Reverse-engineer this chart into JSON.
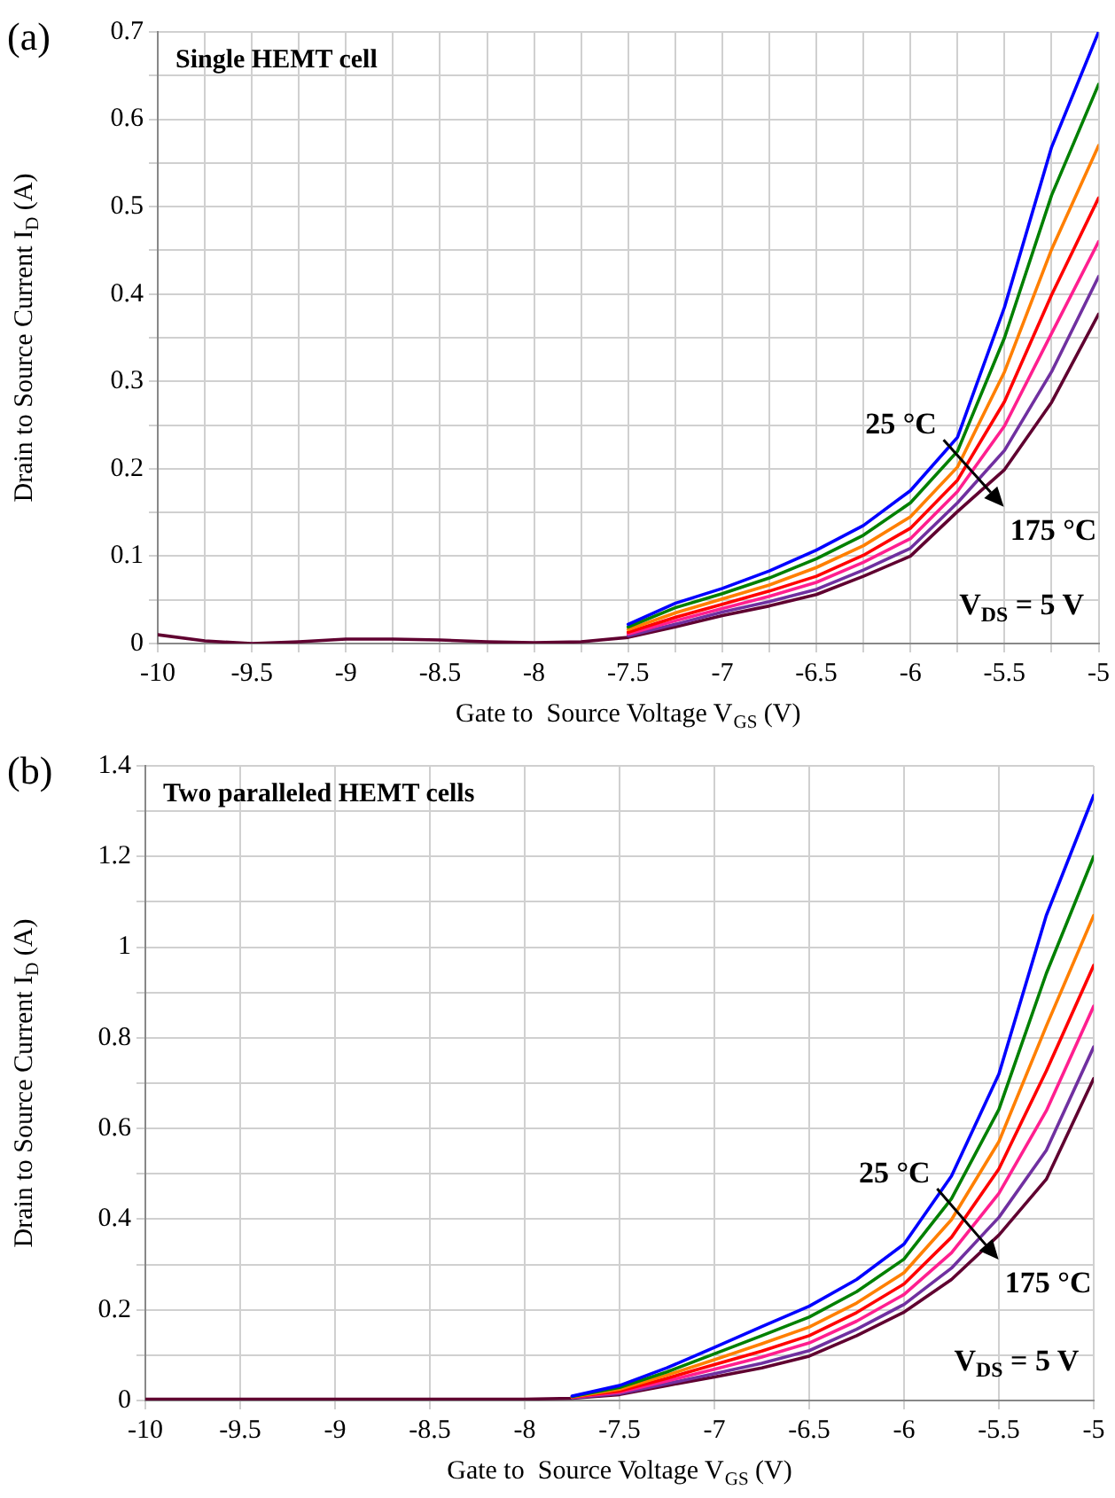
{
  "chart_data": [
    {
      "type": "line",
      "title": "(a)",
      "subtitle": "Single HEMT cell",
      "xlabel": "Gate to  Source Voltage V$_{GS}$ (V)",
      "ylabel": "Drain to Source Current I$_{D}$ (A)",
      "annotations": [
        "25 °C",
        "175 °C",
        "V$_{DS}$ = 5 V"
      ],
      "x": [
        -10,
        -9.75,
        -9.5,
        -9.25,
        -9,
        -8.75,
        -8.5,
        -8.25,
        -8,
        -7.75,
        -7.5,
        -7.25,
        -7,
        -6.75,
        -6.5,
        -6.25,
        -6,
        -5.75,
        -5.5,
        -5.25,
        -5
      ],
      "series": [
        {
          "color": "#0000ff",
          "values": [
            null,
            null,
            null,
            null,
            null,
            null,
            null,
            null,
            null,
            null,
            0.022,
            0.046,
            0.063,
            0.083,
            0.107,
            0.135,
            0.175,
            0.236,
            0.385,
            0.568,
            0.7
          ]
        },
        {
          "color": "#008000",
          "values": [
            null,
            null,
            null,
            null,
            null,
            null,
            null,
            null,
            null,
            null,
            0.019,
            0.041,
            0.057,
            0.075,
            0.097,
            0.124,
            0.161,
            0.22,
            0.35,
            0.513,
            0.64
          ]
        },
        {
          "color": "#ff7f00",
          "values": [
            null,
            null,
            null,
            null,
            null,
            null,
            null,
            null,
            null,
            null,
            0.016,
            0.035,
            0.051,
            0.067,
            0.087,
            0.112,
            0.145,
            0.202,
            0.311,
            0.451,
            0.57
          ]
        },
        {
          "color": "#ff0000",
          "values": [
            null,
            null,
            null,
            null,
            null,
            null,
            null,
            null,
            null,
            null,
            0.013,
            0.03,
            0.045,
            0.06,
            0.077,
            0.101,
            0.132,
            0.187,
            0.277,
            0.399,
            0.51
          ]
        },
        {
          "color": "#ff1f8f",
          "values": [
            null,
            null,
            null,
            null,
            null,
            null,
            null,
            null,
            null,
            null,
            0.011,
            0.026,
            0.04,
            0.054,
            0.07,
            0.093,
            0.12,
            0.174,
            0.249,
            0.355,
            0.46
          ]
        },
        {
          "color": "#7030a0",
          "values": [
            null,
            null,
            null,
            null,
            null,
            null,
            null,
            null,
            null,
            null,
            0.009,
            0.022,
            0.036,
            0.048,
            0.062,
            0.084,
            0.109,
            0.161,
            0.221,
            0.311,
            0.42
          ]
        },
        {
          "color": "#600030",
          "values": [
            0.01,
            0.003,
            0,
            0.002,
            0.005,
            0.005,
            0.004,
            0.002,
            0.001,
            0.002,
            0.007,
            0.019,
            0.032,
            0.043,
            0.056,
            0.077,
            0.1,
            0.151,
            0.199,
            0.276,
            0.377
          ]
        }
      ],
      "xlim": [
        -10,
        -5
      ],
      "xticks": [
        -10,
        {
          "value": -9.75,
          "label": null
        },
        -9.5,
        {
          "value": -9.25,
          "label": null
        },
        -9,
        {
          "value": -8.75,
          "label": null
        },
        -8.5,
        {
          "value": -8.25,
          "label": null
        },
        -8,
        {
          "value": -7.75,
          "label": null
        },
        -7.5,
        {
          "value": -7.25,
          "label": null
        },
        -7,
        {
          "value": -6.75,
          "label": null
        },
        -6.5,
        {
          "value": -6.25,
          "label": null
        },
        -6,
        {
          "value": -5.75,
          "label": null
        },
        -5.5,
        {
          "value": -5.25,
          "label": null
        },
        -5
      ],
      "ylim": [
        0,
        0.7
      ],
      "yticks": [
        0,
        {
          "value": 0.05,
          "label": null
        },
        0.1,
        {
          "value": 0.15,
          "label": null
        },
        0.2,
        {
          "value": 0.25,
          "label": null
        },
        0.3,
        {
          "value": 0.35,
          "label": null
        },
        0.4,
        {
          "value": 0.45,
          "label": null
        },
        0.5,
        {
          "value": 0.55,
          "label": null
        },
        0.6,
        {
          "value": 0.65,
          "label": null
        },
        0.7
      ],
      "grid": true
    },
    {
      "type": "line",
      "title": "(b)",
      "subtitle": "Two paralleled HEMT cells",
      "xlabel": "Gate to  Source Voltage V$_{GS}$ (V)",
      "ylabel": "Drain to Source Current I$_{D}$ (A)",
      "annotations": [
        "25 °C",
        "175 °C",
        "V$_{DS}$ = 5 V"
      ],
      "x": [
        -10,
        -9.75,
        -9.5,
        -9.25,
        -9,
        -8.75,
        -8.5,
        -8.25,
        -8,
        -7.75,
        -7.5,
        -7.25,
        -7,
        -6.75,
        -6.5,
        -6.25,
        -6,
        -5.75,
        -5.5,
        -5.25,
        -5
      ],
      "series": [
        {
          "color": "#0000ff",
          "values": [
            null,
            null,
            null,
            null,
            null,
            null,
            null,
            null,
            null,
            0.01,
            0.033,
            0.072,
            0.117,
            0.163,
            0.208,
            0.267,
            0.345,
            0.495,
            0.72,
            1.07,
            1.335
          ]
        },
        {
          "color": "#008000",
          "values": [
            null,
            null,
            null,
            null,
            null,
            null,
            null,
            null,
            null,
            0.009,
            0.029,
            0.063,
            0.103,
            0.143,
            0.184,
            0.24,
            0.312,
            0.445,
            0.642,
            0.942,
            1.2
          ]
        },
        {
          "color": "#ff7f00",
          "values": [
            null,
            null,
            null,
            null,
            null,
            null,
            null,
            null,
            null,
            0.008,
            0.025,
            0.056,
            0.09,
            0.125,
            0.162,
            0.215,
            0.282,
            0.399,
            0.571,
            0.826,
            1.07
          ]
        },
        {
          "color": "#ff0000",
          "values": [
            null,
            null,
            null,
            null,
            null,
            null,
            null,
            null,
            null,
            0.008,
            0.021,
            0.049,
            0.079,
            0.109,
            0.143,
            0.194,
            0.257,
            0.36,
            0.511,
            0.727,
            0.96
          ]
        },
        {
          "color": "#ff1f8f",
          "values": [
            null,
            null,
            null,
            null,
            null,
            null,
            null,
            null,
            null,
            0.007,
            0.018,
            0.043,
            0.069,
            0.096,
            0.127,
            0.175,
            0.234,
            0.326,
            0.457,
            0.639,
            0.87
          ]
        },
        {
          "color": "#7030a0",
          "values": [
            null,
            null,
            null,
            null,
            null,
            null,
            null,
            null,
            null,
            0.006,
            0.015,
            0.037,
            0.059,
            0.082,
            0.11,
            0.157,
            0.212,
            0.292,
            0.404,
            0.552,
            0.78
          ]
        },
        {
          "color": "#600030",
          "values": [
            0.003,
            0.003,
            0.003,
            0.003,
            0.003,
            0.003,
            0.003,
            0.003,
            0.003,
            0.005,
            0.013,
            0.033,
            0.052,
            0.072,
            0.098,
            0.143,
            0.195,
            0.267,
            0.365,
            0.488,
            0.71
          ]
        }
      ],
      "xlim": [
        -10,
        -5
      ],
      "xticks": [
        -10,
        -9.5,
        -9,
        -8.5,
        -8,
        -7.5,
        -7,
        -6.5,
        -6,
        -5.5,
        -5
      ],
      "ylim": [
        0,
        1.4
      ],
      "yticks": [
        0,
        {
          "value": 0.1,
          "label": null
        },
        0.2,
        {
          "value": 0.3,
          "label": null
        },
        0.4,
        {
          "value": 0.5,
          "label": null
        },
        0.6,
        {
          "value": 0.7,
          "label": null
        },
        0.8,
        {
          "value": 0.9,
          "label": null
        },
        1,
        {
          "value": 1.1,
          "label": null
        },
        1.2,
        {
          "value": 1.3,
          "label": null
        },
        1.4
      ],
      "grid": true
    }
  ]
}
